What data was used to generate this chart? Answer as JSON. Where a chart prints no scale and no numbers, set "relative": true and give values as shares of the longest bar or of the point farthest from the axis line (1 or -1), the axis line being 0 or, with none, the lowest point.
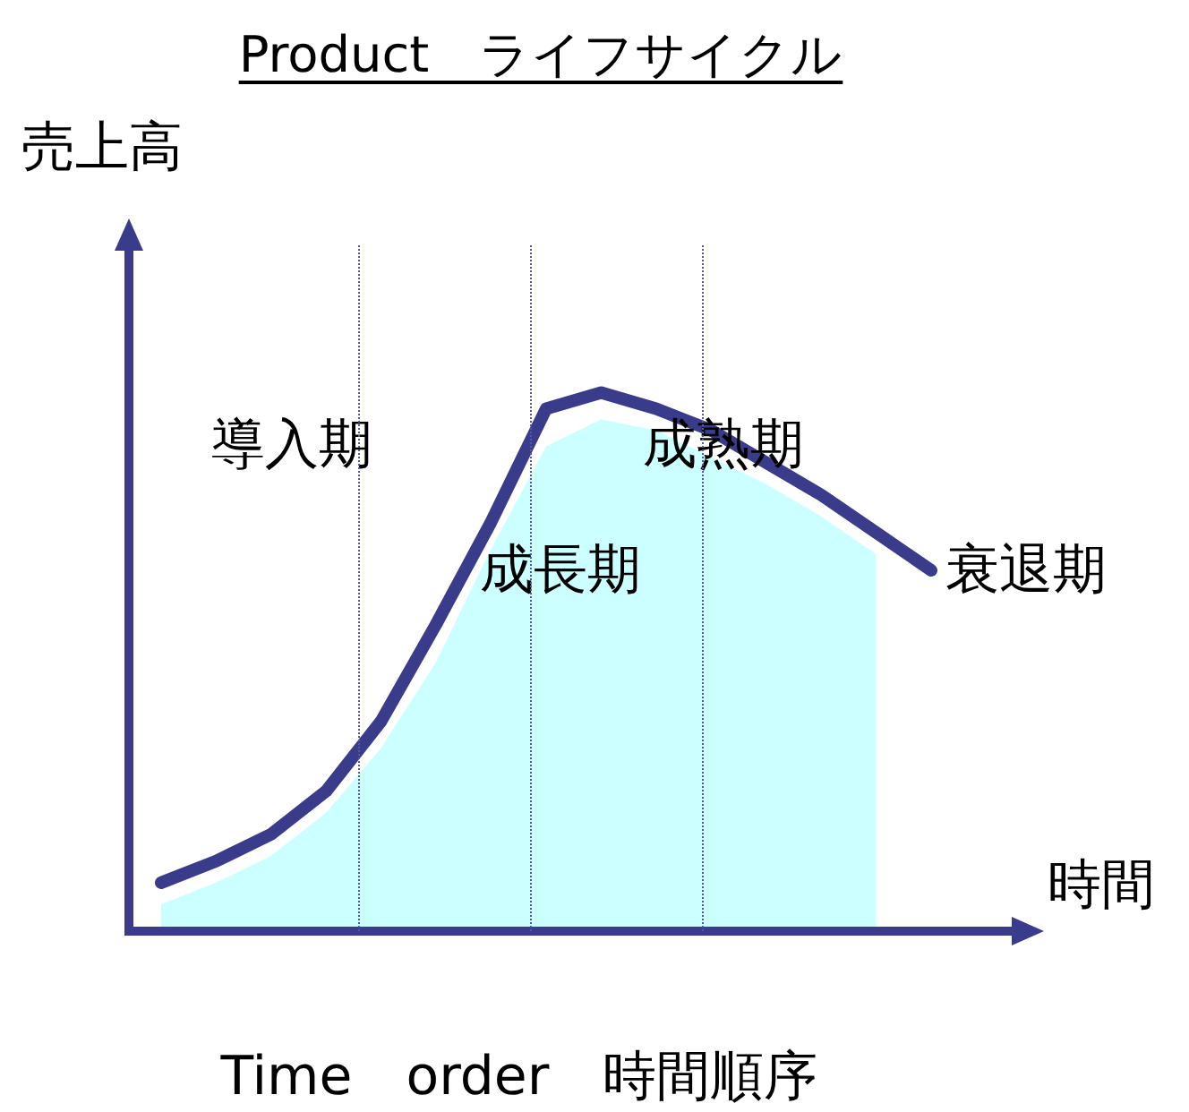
{
  "chart_data": {
    "type": "line",
    "title": "Product　ライフサイクル",
    "ylabel": "売上高",
    "xlabel": "時間",
    "relative": true,
    "legend": false,
    "marker": "none",
    "line_style": "solid",
    "categories": [
      null,
      null,
      null,
      null,
      null,
      null,
      null,
      null,
      null,
      null,
      null,
      null,
      null,
      null,
      null
    ],
    "series": [
      {
        "type": "area",
        "color": "#ccffff",
        "values": [
          0.05,
          0.09,
          0.14,
          0.22,
          0.34,
          0.5,
          0.71,
          0.9,
          0.95,
          0.93,
          0.88,
          0.83,
          0.77,
          0.7,
          null
        ]
      },
      {
        "color": "#3b3b8c",
        "values": [
          0.09,
          0.13,
          0.18,
          0.26,
          0.39,
          0.57,
          0.76,
          0.97,
          1,
          0.97,
          0.93,
          0.87,
          0.81,
          0.74,
          0.67
        ]
      }
    ],
    "annotations": [
      "導入期",
      "成長期",
      "成熟期",
      "衰退期",
      "Time　order　時間順序"
    ]
  }
}
